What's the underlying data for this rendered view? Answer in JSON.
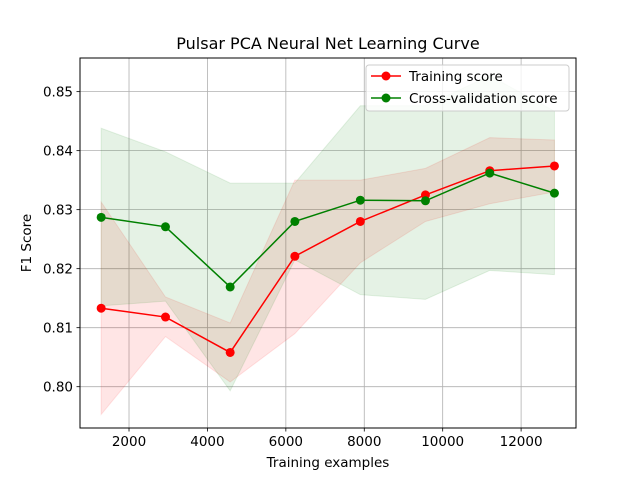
{
  "chart_data": {
    "type": "line",
    "title": "Pulsar PCA Neural Net Learning Curve",
    "xlabel": "Training examples",
    "ylabel": "F1 Score",
    "xlim": [
      750,
      13400
    ],
    "ylim": [
      0.793,
      0.8557
    ],
    "xticks": [
      2000,
      4000,
      6000,
      8000,
      10000,
      12000
    ],
    "xtick_labels": [
      "2000",
      "4000",
      "6000",
      "8000",
      "10000",
      "12000"
    ],
    "yticks": [
      0.8,
      0.81,
      0.82,
      0.83,
      0.84,
      0.85
    ],
    "ytick_labels": [
      "0.80",
      "0.81",
      "0.82",
      "0.83",
      "0.84",
      "0.85"
    ],
    "grid": true,
    "legend_position": "top-right",
    "x": [
      1290,
      2930,
      4580,
      6230,
      7900,
      9560,
      11200,
      12850
    ],
    "series": [
      {
        "name": "Training score",
        "color": "#ff0000",
        "values": [
          0.8133,
          0.8118,
          0.8058,
          0.8221,
          0.828,
          0.8325,
          0.8366,
          0.8374
        ],
        "band_upper": [
          0.8313,
          0.8152,
          0.8108,
          0.835,
          0.835,
          0.837,
          0.8422,
          0.8418
        ],
        "band_lower": [
          0.7953,
          0.8085,
          0.8008,
          0.809,
          0.821,
          0.828,
          0.831,
          0.833
        ]
      },
      {
        "name": "Cross-validation score",
        "color": "#008000",
        "values": [
          0.8287,
          0.8271,
          0.8169,
          0.828,
          0.8316,
          0.8315,
          0.8362,
          0.8328
        ],
        "band_upper": [
          0.8438,
          0.8398,
          0.8345,
          0.8345,
          0.8476,
          0.8476,
          0.8527,
          0.8467
        ],
        "band_lower": [
          0.8137,
          0.8145,
          0.7993,
          0.8215,
          0.8156,
          0.8148,
          0.8197,
          0.819
        ]
      }
    ]
  }
}
